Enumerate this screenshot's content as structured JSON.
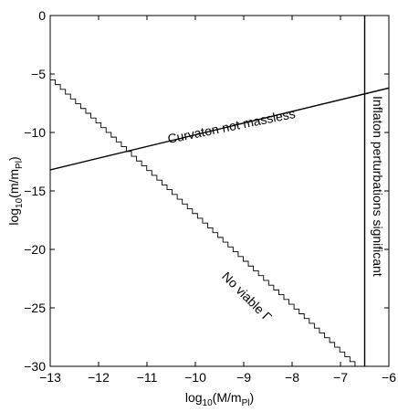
{
  "chart_data": {
    "type": "line",
    "title": "",
    "xlabel": {
      "prefix": "log",
      "prefix_sub": "10",
      "main": "(M/m",
      "sub": "Pl",
      "close": ")"
    },
    "ylabel": {
      "prefix": "log",
      "prefix_sub": "10",
      "main": "(m/m",
      "sub": "Pl",
      "close": ")"
    },
    "xlim": [
      -13,
      -6
    ],
    "ylim": [
      -30,
      0
    ],
    "grid": false,
    "legend": "none",
    "x_ticks": [
      -13,
      -12,
      -11,
      -10,
      -9,
      -8,
      -7,
      -6
    ],
    "x_tick_labels": [
      "−13",
      "−12",
      "−11",
      "−10",
      "−9",
      "−8",
      "−7",
      "−6"
    ],
    "y_ticks": [
      0,
      -5,
      -10,
      -15,
      -20,
      -25,
      -30
    ],
    "y_tick_labels": [
      "0",
      "−5",
      "−10",
      "−15",
      "−20",
      "−25",
      "−30"
    ],
    "series": [
      {
        "points": [
          [
            -13,
            -13.2
          ],
          [
            -6,
            -6.2
          ]
        ],
        "style": "solid",
        "color": "#000000"
      },
      {
        "points": [
          [
            -13,
            -5.5
          ],
          [
            -6.7,
            -30
          ]
        ],
        "style": "staircase",
        "color": "#000000"
      },
      {
        "points": [
          [
            -6.5,
            0
          ],
          [
            -6.5,
            -30
          ]
        ],
        "style": "solid",
        "color": "#000000"
      }
    ],
    "annotations": [
      {
        "text": "Curvaton not massless",
        "x": -9.25,
        "y": -9.55,
        "rotate": -11.5
      },
      {
        "text": "No viable Γ",
        "x": -8.95,
        "y": -24.1,
        "rotate": 45
      },
      {
        "text": "Inflaton perturbations significant",
        "x": -6.25,
        "y": -14.6,
        "rotate": 90
      }
    ]
  }
}
